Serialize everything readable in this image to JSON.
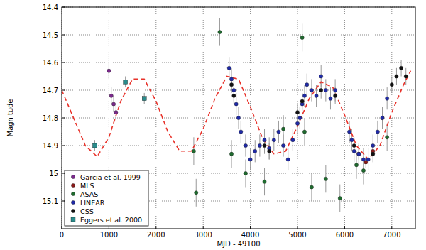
{
  "chart_data": {
    "type": "scatter",
    "x_label": "MJD - 49100",
    "y_label": "Magnitude",
    "xlim": [
      0,
      7500
    ],
    "xticks": [
      0,
      1000,
      2000,
      3000,
      4000,
      5000,
      6000,
      7000
    ],
    "ylim": [
      15.2,
      14.4
    ],
    "yticks": [
      14.4,
      14.5,
      14.6,
      14.7,
      14.8,
      14.9,
      15.0,
      15.1
    ],
    "grid": true,
    "legend": "lower left",
    "series": [
      {
        "name": "Garcia et al. 1999",
        "color": "#7b2a8c",
        "marker": "circle",
        "x": [
          1000,
          1050,
          1100,
          1150
        ],
        "values": [
          14.63,
          14.72,
          14.75,
          14.78
        ],
        "errors": [
          0.03,
          0.03,
          0.03,
          0.03
        ]
      },
      {
        "name": "MLS",
        "color": "#8b1a1a",
        "marker": "circle",
        "x": [
          6300,
          6450,
          6600,
          6800
        ],
        "values": [
          14.93,
          14.96,
          14.92,
          14.8
        ],
        "errors": [
          0.02,
          0.02,
          0.02,
          0.02
        ]
      },
      {
        "name": "ASAS",
        "color": "#1e6b2e",
        "marker": "circle",
        "x": [
          2800,
          2850,
          3350,
          3600,
          3900,
          4300,
          4700,
          5100,
          5150,
          5300,
          5600,
          5900,
          6250,
          6400,
          6900
        ],
        "values": [
          14.92,
          15.07,
          14.49,
          14.93,
          15.0,
          15.03,
          14.84,
          14.51,
          14.85,
          15.05,
          15.02,
          15.09,
          14.97,
          14.99,
          14.87
        ],
        "errors": [
          0.05,
          0.05,
          0.05,
          0.05,
          0.05,
          0.05,
          0.05,
          0.05,
          0.05,
          0.05,
          0.05,
          0.05,
          0.05,
          0.05,
          0.05
        ]
      },
      {
        "name": "LINEAR",
        "color": "#1f2aa8",
        "marker": "circle",
        "x": [
          3550,
          3600,
          3650,
          3700,
          3750,
          3800,
          3900,
          4000,
          4100,
          4200,
          4300,
          4400,
          4500,
          4600,
          4700,
          4800,
          4900,
          5000,
          5050,
          5100,
          5150,
          5200,
          5300,
          5400,
          5500,
          5600,
          5700,
          5800,
          6100,
          6150,
          6200,
          6300,
          6400,
          6500,
          6600,
          6700,
          6800,
          6900
        ],
        "values": [
          14.62,
          14.66,
          14.7,
          14.75,
          14.8,
          14.85,
          14.9,
          14.95,
          14.92,
          14.9,
          14.88,
          14.91,
          14.88,
          14.85,
          14.9,
          14.95,
          14.88,
          14.82,
          14.8,
          14.75,
          14.72,
          14.68,
          14.7,
          14.72,
          14.65,
          14.7,
          14.73,
          14.7,
          14.85,
          14.88,
          14.92,
          14.93,
          14.95,
          14.95,
          14.9,
          14.85,
          14.8,
          14.73
        ],
        "errors": [
          0.04,
          0.04,
          0.04,
          0.04,
          0.04,
          0.04,
          0.04,
          0.04,
          0.04,
          0.04,
          0.04,
          0.04,
          0.04,
          0.04,
          0.04,
          0.04,
          0.04,
          0.04,
          0.04,
          0.04,
          0.04,
          0.04,
          0.04,
          0.04,
          0.04,
          0.04,
          0.04,
          0.04,
          0.04,
          0.04,
          0.04,
          0.04,
          0.04,
          0.04,
          0.04,
          0.04,
          0.04,
          0.04
        ]
      },
      {
        "name": "CSS",
        "color": "#111111",
        "marker": "circle",
        "x": [
          3600,
          3650,
          4300,
          4400,
          5000,
          5100,
          5500,
          5800,
          6200,
          6600,
          7000,
          7100,
          7200,
          7300
        ],
        "values": [
          14.68,
          14.72,
          14.9,
          14.92,
          14.78,
          14.74,
          14.7,
          14.72,
          14.9,
          14.93,
          14.68,
          14.65,
          14.62,
          14.65
        ],
        "errors": [
          0.03,
          0.03,
          0.03,
          0.03,
          0.03,
          0.03,
          0.03,
          0.03,
          0.03,
          0.03,
          0.03,
          0.03,
          0.03,
          0.03
        ]
      },
      {
        "name": "Eggers et al. 2000",
        "color": "#2a8c8c",
        "marker": "square",
        "x": [
          700,
          1350,
          1750
        ],
        "values": [
          14.9,
          14.67,
          14.73
        ],
        "errors": [
          0.02,
          0.02,
          0.02
        ]
      },
      {
        "type": "line",
        "color": "#e8322a",
        "line_style": "dashed",
        "x": [
          0,
          250,
          500,
          750,
          1000,
          1250,
          1500,
          1750,
          2000,
          2250,
          2500,
          2750,
          3000,
          3250,
          3500,
          3750,
          4000,
          4250,
          4500,
          4750,
          5000,
          5250,
          5500,
          5750,
          6000,
          6250,
          6500,
          6750,
          7000,
          7250,
          7400
        ],
        "values": [
          14.7,
          14.8,
          14.9,
          14.94,
          14.87,
          14.74,
          14.66,
          14.66,
          14.74,
          14.85,
          14.92,
          14.92,
          14.84,
          14.73,
          14.65,
          14.66,
          14.76,
          14.87,
          14.93,
          14.92,
          14.83,
          14.73,
          14.67,
          14.69,
          14.79,
          14.9,
          14.95,
          14.9,
          14.78,
          14.68,
          14.63
        ]
      }
    ]
  }
}
